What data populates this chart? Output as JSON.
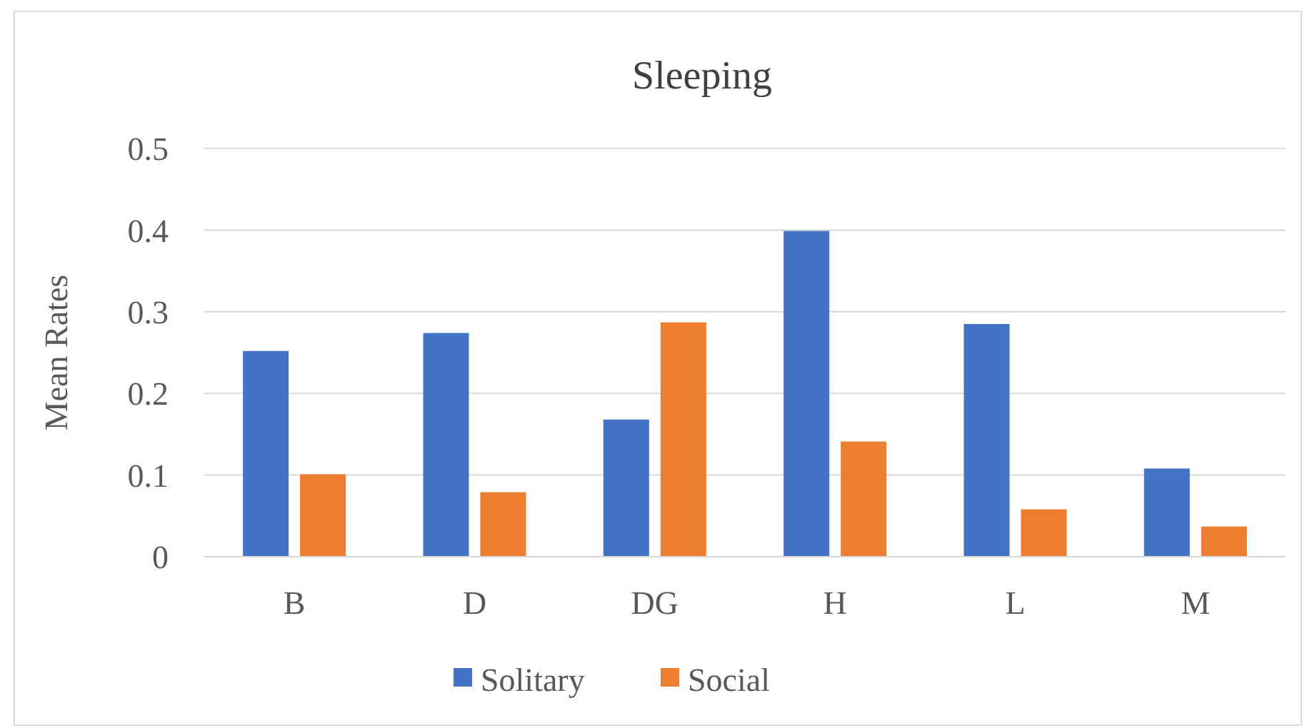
{
  "chart_data": {
    "type": "bar",
    "title": "Sleeping",
    "ylabel": "Mean Rates",
    "categories": [
      "B",
      "D",
      "DG",
      "H",
      "L",
      "M"
    ],
    "series": [
      {
        "name": "Solitary",
        "color": "#4472c4",
        "values": [
          0.252,
          0.274,
          0.168,
          0.399,
          0.285,
          0.108
        ]
      },
      {
        "name": "Social",
        "color": "#ed7d31",
        "values": [
          0.101,
          0.079,
          0.287,
          0.141,
          0.058,
          0.037
        ]
      }
    ],
    "ylim": [
      0,
      0.5
    ],
    "yticks": [
      0,
      0.1,
      0.2,
      0.3,
      0.4,
      0.5
    ],
    "grid": "y",
    "legend": "bottom"
  }
}
